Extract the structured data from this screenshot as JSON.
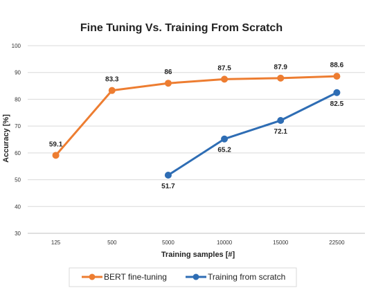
{
  "chart_data": {
    "type": "line",
    "title": "Fine Tuning Vs. Training From Scratch",
    "xlabel": "Training samples [#]",
    "ylabel": "Accuracy [%]",
    "categories": [
      "125",
      "500",
      "5000",
      "10000",
      "15000",
      "22500"
    ],
    "ylim": [
      30,
      100
    ],
    "yticks": [
      "30",
      "40",
      "50",
      "60",
      "70",
      "80",
      "90",
      "100"
    ],
    "grid": true,
    "legend_position": "bottom",
    "series": [
      {
        "name": "BERT fine-tuning",
        "color": "#ED7D31",
        "values": [
          59.1,
          83.3,
          86,
          87.5,
          87.9,
          88.6
        ],
        "labels": [
          "59.1",
          "83.3",
          "86",
          "87.5",
          "87.9",
          "88.6"
        ]
      },
      {
        "name": "Training from scratch",
        "color": "#2E6DB4",
        "values": [
          null,
          null,
          51.7,
          65.2,
          72.1,
          82.5
        ],
        "labels": [
          "",
          "",
          "51.7",
          "65.2",
          "72.1",
          "82.5"
        ]
      }
    ]
  }
}
